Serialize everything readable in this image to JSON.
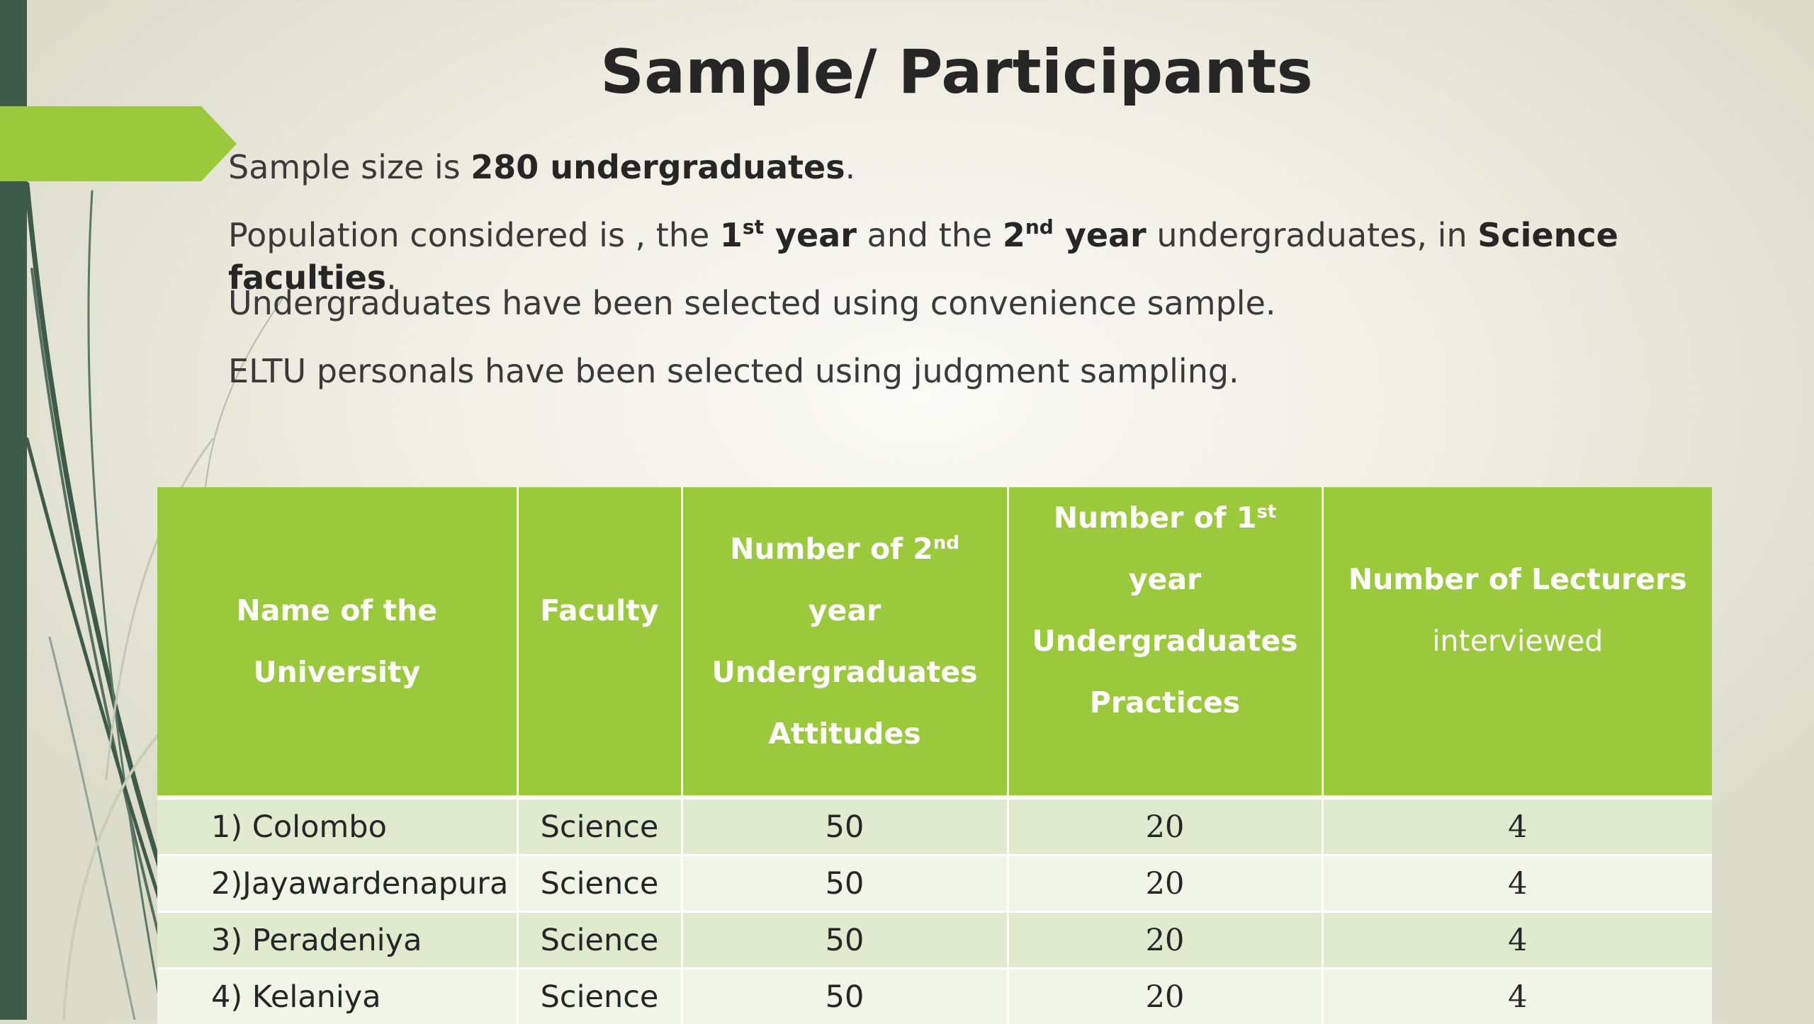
{
  "slide": {
    "title": "Sample/ Participants",
    "bullets": {
      "b1_pre": "Sample size is ",
      "b1_bold": "280 undergraduates",
      "b1_post": ".",
      "b2_p1": "Population considered is , the ",
      "b2_n1": "1",
      "b2_s1": "st",
      "b2_y1": " year",
      "b2_p2": " and  the ",
      "b2_n2": "2",
      "b2_s2": "nd",
      "b2_y2": "  year",
      "b2_p3": " undergraduates, in  ",
      "b2_bold": "Science faculties",
      "b2_post": ".",
      "b3": "Undergraduates have been selected using convenience sample.",
      "b4": "ELTU personals have been selected using judgment sampling."
    }
  },
  "table": {
    "headers": {
      "university_l1": "Name of the",
      "university_l2": "University",
      "faculty": "Faculty",
      "second_a": "Number of  2",
      "second_sup": "nd",
      "second_b": " year",
      "second_l2": "Undergraduates",
      "second_l3": "Attitudes",
      "first_a": "Number of  1",
      "first_sup": "st",
      "first_b": "  year",
      "first_l2": "Undergraduates",
      "first_l3": "Practices",
      "lecturers_l1": "Number of   Lecturers",
      "lecturers_l2": "interviewed"
    },
    "rows": [
      {
        "university": "1) Colombo",
        "faculty": "Science",
        "second_year": "50",
        "first_year": "20",
        "lecturers": "4"
      },
      {
        "university": "2)Jayawardenapura",
        "faculty": "Science",
        "second_year": "50",
        "first_year": "20",
        "lecturers": "4"
      },
      {
        "university": "3) Peradeniya",
        "faculty": "Science",
        "second_year": "50",
        "first_year": "20",
        "lecturers": "4"
      },
      {
        "university": "4) Kelaniya",
        "faculty": "Science",
        "second_year": "50",
        "first_year": "20",
        "lecturers": "4"
      }
    ]
  },
  "colors": {
    "accent_green": "#9bc93c",
    "side_bar": "#3d5a4b",
    "row_dark": "#dfeacf",
    "row_light": "#f0f5e8"
  }
}
